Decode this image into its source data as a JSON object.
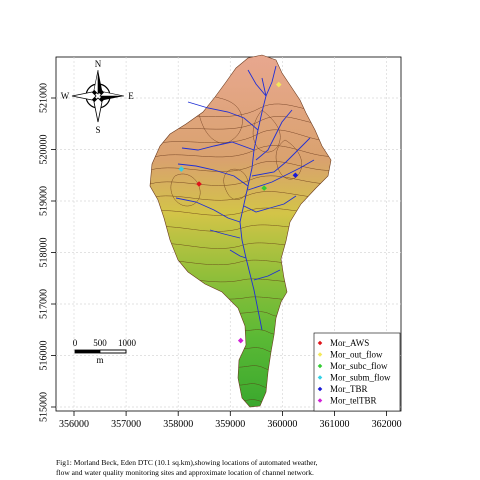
{
  "map": {
    "x_ticks": [
      "356000",
      "357000",
      "358000",
      "359000",
      "360000",
      "361000",
      "362000"
    ],
    "y_ticks": [
      "515000",
      "516000",
      "517000",
      "518000",
      "519000",
      "520000",
      "521000"
    ],
    "compass": {
      "north": "N",
      "south": "S",
      "east": "E",
      "west": "W"
    },
    "scale_bar": {
      "labels": [
        "0",
        "500",
        "1000"
      ],
      "unit": "m"
    },
    "colors": {
      "high_elevation": "#e5a48a",
      "mid_elevation": "#d4c24a",
      "low_elevation": "#4fb833",
      "contour": "#5a2a10",
      "channel": "#1f2fd6",
      "grid": "#d9d9d9"
    },
    "legend": [
      {
        "label": "Mor_AWS",
        "color": "#e0141b"
      },
      {
        "label": "Mor_out_flow",
        "color": "#f3e85a"
      },
      {
        "label": "Mor_subc_flow",
        "color": "#33cc33"
      },
      {
        "label": "Mor_subm_flow",
        "color": "#33d1e6"
      },
      {
        "label": "Mor_TBR",
        "color": "#1a1ad6"
      },
      {
        "label": "Mor_telTBR",
        "color": "#d11fd6"
      }
    ],
    "sites": [
      {
        "name": "Mor_AWS",
        "easting": 358400,
        "northing": 519330
      },
      {
        "name": "Mor_out_flow",
        "easting": 359930,
        "northing": 521260
      },
      {
        "name": "Mor_subc_flow",
        "easting": 359650,
        "northing": 519250
      },
      {
        "name": "Mor_subm_flow",
        "easting": 358060,
        "northing": 519620
      },
      {
        "name": "Mor_TBR",
        "easting": 360250,
        "northing": 519500
      },
      {
        "name": "Mor_telTBR",
        "easting": 359200,
        "northing": 516290
      }
    ]
  },
  "caption": {
    "line1": "Fig1: Morland Beck, Eden DTC (10.1 sq.km),showing locations of automated weather,",
    "line2": "flow and water quality monitoring sites and approximate location of channel network."
  }
}
